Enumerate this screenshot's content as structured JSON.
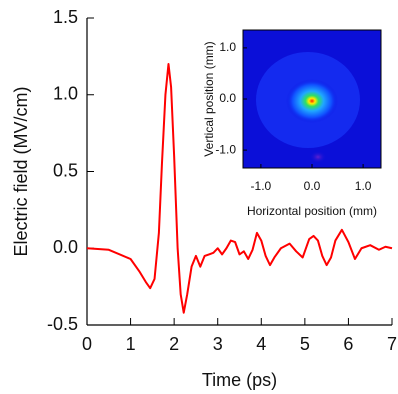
{
  "chart_data": [
    {
      "type": "line",
      "x_label": "Time (ps)",
      "y_label": "Electric field (MV/cm)",
      "x": [
        0,
        0.5,
        1,
        1.2,
        1.35,
        1.45,
        1.55,
        1.65,
        1.72,
        1.8,
        1.87,
        1.93,
        2,
        2.08,
        2.15,
        2.22,
        2.3,
        2.4,
        2.5,
        2.6,
        2.7,
        2.8,
        2.9,
        3,
        3.1,
        3.2,
        3.3,
        3.4,
        3.5,
        3.6,
        3.7,
        3.8,
        3.9,
        4,
        4.1,
        4.2,
        4.3,
        4.45,
        4.65,
        4.8,
        4.95,
        5.1,
        5.2,
        5.3,
        5.4,
        5.5,
        5.6,
        5.7,
        5.85,
        6,
        6.15,
        6.3,
        6.5,
        6.7,
        6.85,
        7
      ],
      "values": [
        0,
        -0.01,
        -0.07,
        -0.15,
        -0.22,
        -0.26,
        -0.2,
        0.1,
        0.55,
        1.0,
        1.2,
        1.05,
        0.6,
        0.0,
        -0.3,
        -0.42,
        -0.3,
        -0.12,
        -0.05,
        -0.12,
        -0.05,
        -0.04,
        -0.03,
        0.0,
        -0.04,
        0.0,
        0.05,
        0.04,
        -0.04,
        -0.02,
        -0.07,
        -0.01,
        0.1,
        0.05,
        -0.05,
        -0.11,
        -0.06,
        0.0,
        0.03,
        -0.02,
        -0.06,
        0.06,
        0.08,
        0.05,
        -0.05,
        -0.11,
        -0.06,
        0.05,
        0.12,
        0.04,
        -0.07,
        0.0,
        0.02,
        -0.01,
        0.01,
        0.0
      ],
      "color": "#ff0000",
      "xlim": [
        0,
        7
      ],
      "ylim": [
        -0.5,
        1.5
      ],
      "xticks": [
        0,
        1,
        2,
        3,
        4,
        5,
        6,
        7
      ],
      "yticks": [
        -0.5,
        {
          "value": 0,
          "label": "0.0"
        },
        0.5,
        {
          "value": 1,
          "label": "1.0"
        },
        1.5
      ]
    },
    {
      "type": "image",
      "x_label": "Horizontal position (mm)",
      "y_label": "Vertical position (mm)",
      "xlim": [
        -1.35,
        1.35
      ],
      "ylim": [
        -1.35,
        1.35
      ],
      "xticks": [
        {
          "value": -1,
          "label": "-1.0"
        },
        {
          "value": 0,
          "label": "0.0"
        },
        {
          "value": 1,
          "label": "1.0"
        }
      ],
      "yticks": [
        {
          "value": -1,
          "label": "-1.0"
        },
        {
          "value": 0,
          "label": "0.0"
        },
        {
          "value": 1,
          "label": "1.0"
        }
      ]
    }
  ]
}
